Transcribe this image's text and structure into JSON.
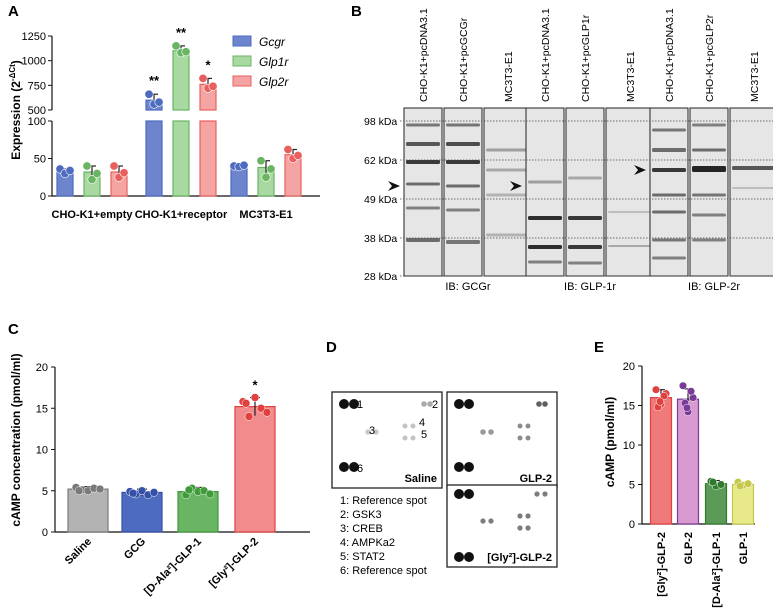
{
  "panels": {
    "A": "A",
    "B": "B",
    "C": "C",
    "D": "D",
    "E": "E"
  },
  "chart_data": [
    {
      "id": "A",
      "type": "bar",
      "ylabel": "Expression (2",
      "ylabel_sup": "-ΔCt",
      "ylabel_end": ")",
      "categories": [
        "CHO-K1+empty",
        "CHO-K1+receptor",
        "MC3T3-E1"
      ],
      "broken_axis": true,
      "lower_range": [
        0,
        100
      ],
      "upper_range": [
        500,
        1250
      ],
      "lower_ticks": [
        0,
        50,
        100
      ],
      "upper_ticks": [
        500,
        750,
        1000,
        1250
      ],
      "series": [
        {
          "name": "Gcgr",
          "color": "#4d6bbf",
          "values": [
            33,
            600,
            40
          ],
          "points": [
            [
              36,
              30,
              34
            ],
            [
              660,
              560,
              580
            ],
            [
              40,
              39,
              41
            ]
          ]
        },
        {
          "name": "Glp1r",
          "color": "#6ab564",
          "values": [
            32,
            1100,
            38
          ],
          "points": [
            [
              40,
              22,
              30
            ],
            [
              1150,
              1080,
              1090
            ],
            [
              47,
              25,
              36
            ]
          ]
        },
        {
          "name": "Glp2r",
          "color": "#e8605e",
          "values": [
            32,
            760,
            55
          ],
          "points": [
            [
              40,
              25,
              31
            ],
            [
              820,
              720,
              740
            ],
            [
              62,
              50,
              54
            ]
          ]
        }
      ],
      "significance": [
        {
          "category": 1,
          "series": 0,
          "label": "**"
        },
        {
          "category": 1,
          "series": 1,
          "label": "**"
        },
        {
          "category": 1,
          "series": 2,
          "label": "*"
        }
      ]
    },
    {
      "id": "C",
      "type": "bar",
      "ylabel": "cAMP concentration (pmol/ml)",
      "ylim": [
        0,
        20
      ],
      "ticks": [
        0,
        5,
        10,
        15,
        20
      ],
      "categories": [
        "Saline",
        "GCG",
        "[D-Ala²]-GLP-1",
        "[Gly²]-GLP-2"
      ],
      "values": [
        5.2,
        4.8,
        4.9,
        15.2
      ],
      "colors": [
        "#b3b3b3",
        "#4d6bbf",
        "#6ab564",
        "#f28b8b"
      ],
      "point_colors": [
        "#7a7a7a",
        "#3550a8",
        "#3f9a3a",
        "#e0413f"
      ],
      "points": [
        [
          5.4,
          5.1,
          5.0,
          5.3,
          5.2,
          5.0
        ],
        [
          4.9,
          4.6,
          5.0,
          4.5,
          4.8,
          4.7
        ],
        [
          4.5,
          5.3,
          4.9,
          5.0,
          4.6,
          5.1
        ],
        [
          15.8,
          14.0,
          16.3,
          15.0,
          14.5,
          15.6
        ]
      ],
      "errors": [
        0.3,
        0.4,
        0.5,
        1.1
      ],
      "significance": [
        {
          "category": 3,
          "label": "*"
        }
      ]
    },
    {
      "id": "E",
      "type": "bar",
      "ylabel": "cAMP (pmol/ml)",
      "ylim": [
        0,
        20
      ],
      "ticks": [
        0,
        5,
        10,
        15,
        20
      ],
      "categories": [
        "[Gly²]-GLP-2",
        "GLP-2",
        "[D-Ala²]-GLP-1",
        "GLP-1"
      ],
      "values": [
        16.0,
        15.8,
        5.1,
        5.0
      ],
      "colors": [
        "#f07a7a",
        "#d89ad0",
        "#5c9a58",
        "#e8ea8a"
      ],
      "point_colors": [
        "#e0413f",
        "#7a3a98",
        "#2f7a2c",
        "#c5c84a"
      ],
      "points": [
        [
          17.0,
          15.2,
          16.5,
          14.8,
          16.2,
          15.5
        ],
        [
          17.5,
          14.2,
          16.0,
          15.3,
          16.8,
          14.7
        ],
        [
          5.4,
          4.8,
          5.0,
          5.3
        ],
        [
          5.3,
          4.9,
          5.1,
          4.8
        ]
      ],
      "errors": [
        1.0,
        1.3,
        0.4,
        0.3
      ]
    }
  ],
  "blot": {
    "kda_labels": [
      "98 kDa",
      "62 kDa",
      "49 kDa",
      "38 kDa",
      "28 kDa"
    ],
    "kda_values": [
      98,
      62,
      49,
      38,
      28
    ],
    "groups": [
      {
        "ib": "IB: GCGr",
        "lanes": [
          "CHO-K1+pcDNA3.1",
          "CHO-K1+pcGCGr",
          "MC3T3-E1"
        ]
      },
      {
        "ib": "IB: GLP-1r",
        "lanes": [
          "CHO-K1+pcDNA3.1",
          "CHO-K1+pcGLP1r",
          "MC3T3-E1"
        ]
      },
      {
        "ib": "IB: GLP-2r",
        "lanes": [
          "CHO-K1+pcDNA3.1",
          "CHO-K1+pcGLP2r",
          "MC3T3-E1"
        ]
      }
    ]
  },
  "dot_blot": {
    "membranes": [
      "Saline",
      "GLP-2",
      "[Gly²]-GLP-2"
    ],
    "spot_numbers": [
      "1",
      "2",
      "3",
      "4",
      "5",
      "6"
    ],
    "key": [
      "1: Reference spot",
      "2: GSK3",
      "3: CREB",
      "4: AMPKa2",
      "5: STAT2",
      "6: Reference spot"
    ]
  }
}
